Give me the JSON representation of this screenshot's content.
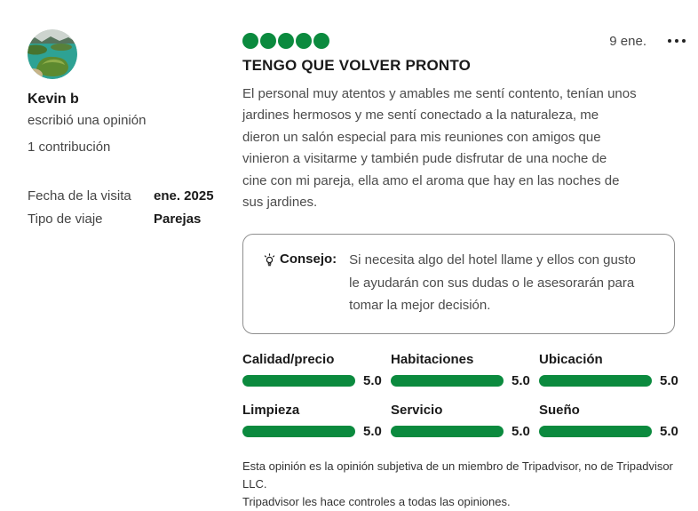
{
  "theme": {
    "brand_green": "#0b8a3e",
    "text_dark": "#1a1a1a",
    "text_gray": "#4c4c4c",
    "tip_border": "#8f8f8f"
  },
  "user": {
    "name": "Kevin b",
    "action": "escribió una opinión",
    "contributions": "1 contribución"
  },
  "visit": {
    "date_label": "Fecha de la visita",
    "date_value": "ene. 2025",
    "type_label": "Tipo de viaje",
    "type_value": "Parejas"
  },
  "review": {
    "rating": 5,
    "date": "9 ene.",
    "title": "TENGO QUE VOLVER PRONTO",
    "body": "El personal muy atentos y amables me sentí contento, tenían unos\njardines hermosos y me sentí conectado a la naturaleza, me\ndieron un salón especial para mis reuniones con amigos que\nvinieron a visitarme y también pude disfrutar de una noche de\ncine con mi pareja, ella amo el aroma que hay en las noches de\nsus jardines."
  },
  "tip": {
    "label": "Consejo:",
    "text": "Si necesita algo del hotel llame y ellos con gusto\nle ayudarán con sus dudas o le asesorarán para\ntomar la mejor decisión."
  },
  "subratings": [
    {
      "label": "Calidad/precio",
      "value": "5.0"
    },
    {
      "label": "Habitaciones",
      "value": "5.0"
    },
    {
      "label": "Ubicación",
      "value": "5.0"
    },
    {
      "label": "Limpieza",
      "value": "5.0"
    },
    {
      "label": "Servicio",
      "value": "5.0"
    },
    {
      "label": "Sueño",
      "value": "5.0"
    }
  ],
  "disclaimer": "Esta opinión es la opinión subjetiva de un miembro de Tripadvisor, no de Tripadvisor LLC.\nTripadvisor les hace controles a todas las opiniones."
}
